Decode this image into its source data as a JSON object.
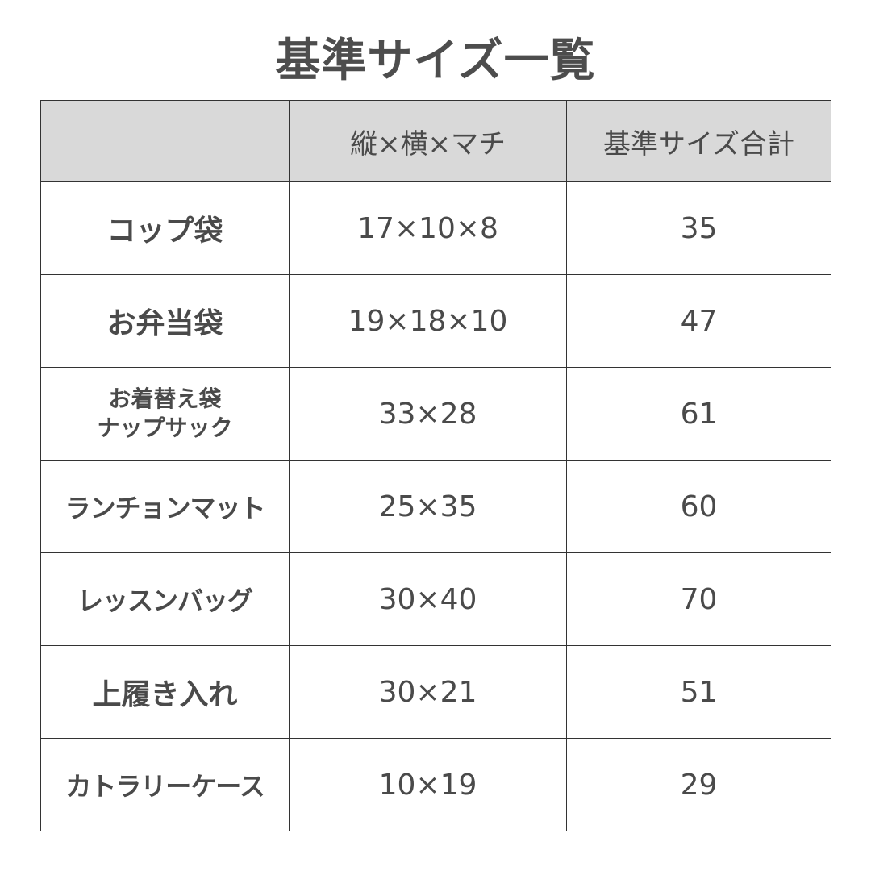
{
  "title": "基準サイズ一覧",
  "header": {
    "item": "",
    "dimensions": "縦×横×マチ",
    "total": "基準サイズ合計"
  },
  "rows": [
    {
      "item": [
        "コップ袋"
      ],
      "dimensions": "17×10×8",
      "total": "35"
    },
    {
      "item": [
        "お弁当袋"
      ],
      "dimensions": "19×18×10",
      "total": "47"
    },
    {
      "item": [
        "お着替え袋",
        "ナップサック"
      ],
      "dimensions": "33×28",
      "total": "61"
    },
    {
      "item": [
        "ランチョンマット"
      ],
      "dimensions": "25×35",
      "total": "60"
    },
    {
      "item": [
        "レッスンバッグ"
      ],
      "dimensions": "30×40",
      "total": "70"
    },
    {
      "item": [
        "上履き入れ"
      ],
      "dimensions": "30×21",
      "total": "51"
    },
    {
      "item": [
        "カトラリーケース"
      ],
      "dimensions": "10×19",
      "total": "29"
    }
  ],
  "colors": {
    "header_bg": "#d9d9d9",
    "total_text": "#1e7a3a",
    "text": "#4a4a4a",
    "border": "#333333"
  }
}
